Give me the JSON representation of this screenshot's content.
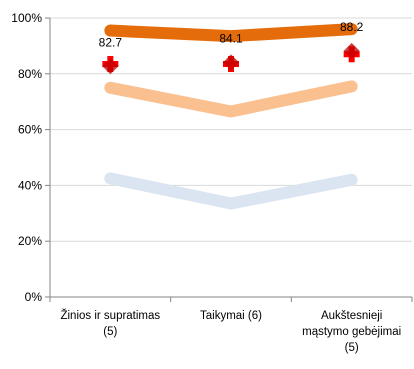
{
  "chart_data": {
    "type": "line",
    "title": "",
    "xlabel": "",
    "ylabel": "",
    "ylim": [
      0,
      100
    ],
    "yticks": [
      0,
      20,
      40,
      60,
      80,
      100
    ],
    "ytick_labels": [
      "0%",
      "20%",
      "40%",
      "60%",
      "80%",
      "100%"
    ],
    "grid": true,
    "legend": "none",
    "categories": [
      [
        "Žinios ir supratimas",
        "(5)"
      ],
      [
        "Taikymai (6)"
      ],
      [
        "Aukštesnieji",
        "mąstymo gebėjimai",
        "(5)"
      ]
    ],
    "series": [
      {
        "values": [
          95.5,
          93.5,
          96
        ],
        "color": "#E46C0A",
        "style": "thick-line"
      },
      {
        "values": [
          75,
          66.5,
          75.5
        ],
        "color": "#FAC090",
        "style": "thick-line"
      },
      {
        "values": [
          42.5,
          33.5,
          42
        ],
        "color": "#DBE5F1",
        "style": "thick-line"
      },
      {
        "values": [
          83.5,
          83.5,
          87
        ],
        "color": "#FF0000",
        "style": "cross-marker"
      },
      {
        "values": [
          82.7,
          84.1,
          88.2
        ],
        "color": "#C00000",
        "style": "diamond-marker",
        "data_labels": [
          "82.7",
          "84.1",
          "88.2"
        ]
      }
    ]
  }
}
